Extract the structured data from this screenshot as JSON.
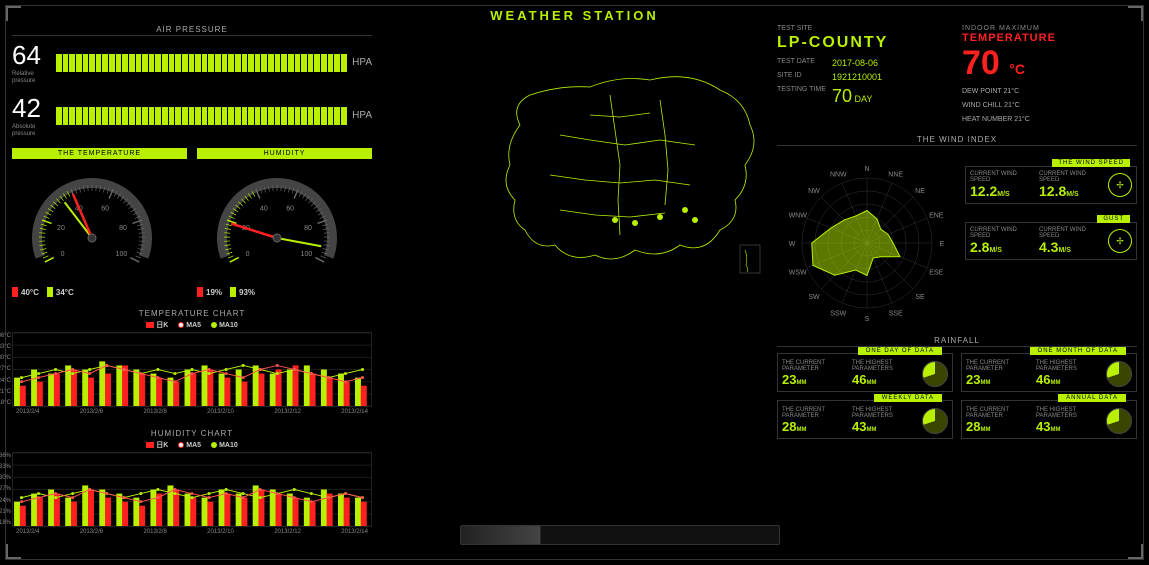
{
  "header": {
    "title": "WEATHER STATION"
  },
  "pressure": {
    "section_title": "AIR PRESSURE",
    "relative": {
      "value": "64",
      "label": "Relative\npressure",
      "unit": "HPA",
      "bars": 44
    },
    "absolute": {
      "value": "42",
      "label": "Absolute\npressure",
      "unit": "HPA",
      "bars": 44
    }
  },
  "gauges": {
    "temperature": {
      "title": "THE TEMPERATURE",
      "value": 40,
      "secondary": 34,
      "min": 0,
      "max": 100,
      "ticks": [
        "0",
        "20",
        "40",
        "60",
        "80",
        "100"
      ],
      "legend": [
        {
          "color": "#ff2020",
          "label": "40°C"
        },
        {
          "color": "#b8f000",
          "label": "34°C"
        }
      ]
    },
    "humidity": {
      "title": "HUMIDITY",
      "value": 19,
      "secondary": 93,
      "min": 0,
      "max": 100,
      "ticks": [
        "0",
        "20",
        "40",
        "60",
        "80",
        "100"
      ],
      "legend": [
        {
          "color": "#ff2020",
          "label": "19%"
        },
        {
          "color": "#b8f000",
          "label": "93%"
        }
      ]
    }
  },
  "temp_chart": {
    "title": "TEMPERATURE CHART",
    "legend": [
      {
        "key": "日K",
        "color": "#ff2020"
      },
      {
        "key": "MA5",
        "color": "#ff2020"
      },
      {
        "key": "MA10",
        "color": "#b8f000"
      }
    ],
    "y_labels": [
      "36°C",
      "33°C",
      "30°C",
      "27°C",
      "24°C",
      "21°C",
      "18°C"
    ],
    "x_labels": [
      "2013/2/4",
      "2013/2/6",
      "2013/2/8",
      "2013/2/10",
      "2013/2/12",
      "2013/2/14"
    ],
    "bars_green": [
      25,
      27,
      26,
      28,
      27,
      29,
      28,
      27,
      26,
      25,
      27,
      28,
      26,
      27,
      28,
      26,
      27,
      28,
      27,
      26,
      25
    ],
    "bars_red": [
      23,
      24,
      26,
      27,
      25,
      26,
      28,
      26,
      25,
      24,
      26,
      27,
      25,
      24,
      26,
      27,
      28,
      26,
      25,
      24,
      23
    ],
    "line_red": [
      24,
      25,
      26,
      27,
      26,
      28,
      27,
      26,
      25,
      24,
      26,
      27,
      26,
      25,
      27,
      28,
      27,
      26,
      25,
      24,
      25
    ],
    "line_grn": [
      25,
      26,
      27,
      26,
      27,
      28,
      27,
      26,
      27,
      26,
      27,
      26,
      27,
      28,
      27,
      26,
      27,
      26,
      25,
      26,
      27
    ]
  },
  "hum_chart": {
    "title": "HUMIDITY CHART",
    "legend": [
      {
        "key": "日K",
        "color": "#ff2020"
      },
      {
        "key": "MA5",
        "color": "#ff2020"
      },
      {
        "key": "MA10",
        "color": "#b8f000"
      }
    ],
    "y_labels": [
      "36%",
      "33%",
      "30%",
      "27%",
      "24%",
      "21%",
      "18%"
    ],
    "x_labels": [
      "2013/2/4",
      "2013/2/6",
      "2013/2/8",
      "2013/2/10",
      "2013/2/12",
      "2013/2/14"
    ],
    "bars_green": [
      24,
      26,
      27,
      25,
      28,
      27,
      26,
      25,
      27,
      28,
      26,
      25,
      27,
      26,
      28,
      27,
      26,
      25,
      27,
      26,
      25
    ],
    "bars_red": [
      23,
      25,
      26,
      24,
      27,
      25,
      24,
      23,
      26,
      27,
      25,
      24,
      26,
      25,
      27,
      26,
      25,
      24,
      26,
      25,
      24
    ],
    "line_red": [
      24,
      25,
      26,
      25,
      27,
      26,
      25,
      24,
      25,
      27,
      26,
      25,
      26,
      25,
      27,
      26,
      25,
      24,
      25,
      26,
      25
    ],
    "line_grn": [
      25,
      26,
      25,
      26,
      27,
      26,
      25,
      26,
      27,
      26,
      25,
      26,
      27,
      26,
      25,
      26,
      27,
      26,
      25,
      26,
      25
    ]
  },
  "site": {
    "heading": "TEST SITE",
    "name": "LP-COUNTY",
    "rows": [
      {
        "k": "TEST DATE",
        "v": "2017-08-06"
      },
      {
        "k": "SITE ID",
        "v": "1921210001"
      },
      {
        "k": "TESTING TIME",
        "v": "70",
        "suffix": "DAY"
      }
    ]
  },
  "indoor": {
    "heading": "INDOOR MAXIMUM",
    "title": "TEMPERATURE",
    "value": "70",
    "unit": "°C",
    "sub": [
      "DEW POINT 21°C",
      "WIND CHILL 21°C",
      "HEAT NUMBER 21°C"
    ]
  },
  "wind": {
    "section_title": "THE WIND INDEX",
    "compass": [
      "N",
      "NNE",
      "NE",
      "ENE",
      "E",
      "ESE",
      "SE",
      "SSE",
      "S",
      "SSW",
      "SW",
      "WSW",
      "W",
      "WNW",
      "NW",
      "NNW"
    ],
    "radar_values": [
      0.5,
      0.4,
      0.3,
      0.35,
      0.4,
      0.55,
      0.3,
      0.25,
      0.5,
      0.45,
      0.7,
      0.9,
      0.85,
      0.6,
      0.5,
      0.45
    ],
    "speed": {
      "title": "THE WIND SPEED",
      "col1_label": "CURRENT WIND SPEED",
      "col1_val": "12.2",
      "col2_label": "CURRENT WIND SPEED",
      "col2_val": "12.8",
      "unit": "M/S"
    },
    "gust": {
      "title": "GUST",
      "col1_label": "CURRENT WIND SPEED",
      "col1_val": "2.8",
      "col2_label": "CURRENT WIND SPEED",
      "col2_val": "4.3",
      "unit": "M/S"
    }
  },
  "rainfall": {
    "section_title": "RAINFALL",
    "cards": [
      {
        "title": "ONE DAY OF DATA",
        "p1_label": "THE CURRENT PARAMETER",
        "p1_val": "23",
        "p2_label": "THE HIGHEST PARAMETERS",
        "p2_val": "46",
        "unit": "MM"
      },
      {
        "title": "ONE MONTH OF DATA",
        "p1_label": "THE CURRENT PARAMETER",
        "p1_val": "23",
        "p2_label": "THE HIGHEST PARAMETERS",
        "p2_val": "46",
        "unit": "MM"
      },
      {
        "title": "WEEKLY DATA",
        "p1_label": "THE CURRENT PARAMETER",
        "p1_val": "28",
        "p2_label": "THE HIGHEST PARAMETERS",
        "p2_val": "43",
        "unit": "MM"
      },
      {
        "title": "ANNUAL DATA",
        "p1_label": "THE CURRENT PARAMETER",
        "p1_val": "28",
        "p2_label": "THE HIGHEST PARAMETERS",
        "p2_val": "43",
        "unit": "MM"
      }
    ]
  },
  "colors": {
    "accent": "#b8f000",
    "danger": "#ff2020",
    "bg": "#000",
    "grid": "#333"
  }
}
